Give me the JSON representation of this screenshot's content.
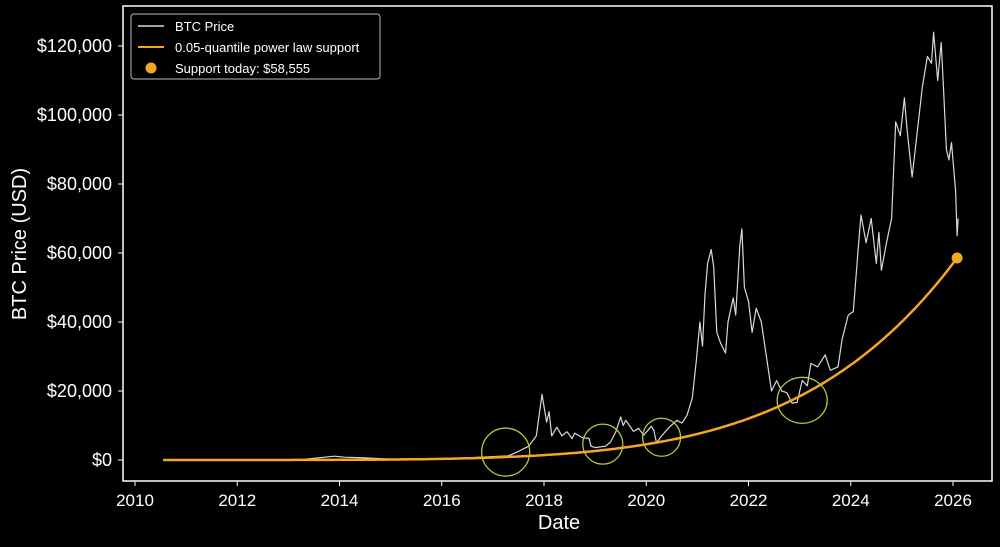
{
  "chart_data": {
    "type": "line",
    "title": "",
    "xlabel": "Date",
    "ylabel": "BTC Price (USD)",
    "xlim": [
      2009.8,
      2026.75
    ],
    "ylim": [
      -6500,
      132000
    ],
    "x_ticks": [
      2010,
      2012,
      2014,
      2016,
      2018,
      2020,
      2022,
      2024,
      2026
    ],
    "x_tick_labels": [
      "2010",
      "2012",
      "2014",
      "2016",
      "2018",
      "2020",
      "2022",
      "2024",
      "2026"
    ],
    "y_ticks": [
      0,
      20000,
      40000,
      60000,
      80000,
      100000,
      120000
    ],
    "y_tick_labels": [
      "$0",
      "$20,000",
      "$40,000",
      "$60,000",
      "$80,000",
      "$100,000",
      "$120,000"
    ],
    "grid": false,
    "legend_placement": "top-left",
    "background": "#000000",
    "series": [
      {
        "name": "BTC Price",
        "color": "#d9d9d9",
        "points": [
          [
            2010.55,
            0.07
          ],
          [
            2011.5,
            15
          ],
          [
            2013.0,
            13
          ],
          [
            2013.3,
            200
          ],
          [
            2013.9,
            1100
          ],
          [
            2014.1,
            800
          ],
          [
            2014.5,
            600
          ],
          [
            2015.0,
            250
          ],
          [
            2015.9,
            400
          ],
          [
            2016.5,
            650
          ],
          [
            2017.0,
            1000
          ],
          [
            2017.3,
            1200
          ],
          [
            2017.5,
            2500
          ],
          [
            2017.7,
            4000
          ],
          [
            2017.85,
            7000
          ],
          [
            2017.96,
            19000
          ],
          [
            2018.05,
            11000
          ],
          [
            2018.1,
            14000
          ],
          [
            2018.15,
            7000
          ],
          [
            2018.25,
            9500
          ],
          [
            2018.35,
            7000
          ],
          [
            2018.45,
            8200
          ],
          [
            2018.55,
            6200
          ],
          [
            2018.6,
            7800
          ],
          [
            2018.75,
            6500
          ],
          [
            2018.88,
            6300
          ],
          [
            2018.92,
            4000
          ],
          [
            2019.0,
            3600
          ],
          [
            2019.2,
            4000
          ],
          [
            2019.3,
            5200
          ],
          [
            2019.4,
            8000
          ],
          [
            2019.5,
            12500
          ],
          [
            2019.55,
            10000
          ],
          [
            2019.6,
            11500
          ],
          [
            2019.75,
            8300
          ],
          [
            2019.85,
            9200
          ],
          [
            2019.95,
            7200
          ],
          [
            2020.1,
            9800
          ],
          [
            2020.15,
            8500
          ],
          [
            2020.2,
            5000
          ],
          [
            2020.3,
            7000
          ],
          [
            2020.45,
            9500
          ],
          [
            2020.6,
            11500
          ],
          [
            2020.7,
            10700
          ],
          [
            2020.8,
            13000
          ],
          [
            2020.9,
            18000
          ],
          [
            2020.98,
            29000
          ],
          [
            2021.05,
            40000
          ],
          [
            2021.1,
            33000
          ],
          [
            2021.15,
            48000
          ],
          [
            2021.2,
            57000
          ],
          [
            2021.27,
            61000
          ],
          [
            2021.32,
            56000
          ],
          [
            2021.38,
            37000
          ],
          [
            2021.45,
            34000
          ],
          [
            2021.55,
            31000
          ],
          [
            2021.6,
            40000
          ],
          [
            2021.7,
            47000
          ],
          [
            2021.75,
            42000
          ],
          [
            2021.83,
            62000
          ],
          [
            2021.87,
            67000
          ],
          [
            2021.92,
            50000
          ],
          [
            2022.0,
            46000
          ],
          [
            2022.07,
            37000
          ],
          [
            2022.15,
            44000
          ],
          [
            2022.25,
            40000
          ],
          [
            2022.35,
            30000
          ],
          [
            2022.45,
            20000
          ],
          [
            2022.55,
            23000
          ],
          [
            2022.65,
            20000
          ],
          [
            2022.75,
            19500
          ],
          [
            2022.85,
            16500
          ],
          [
            2022.95,
            16700
          ],
          [
            2023.05,
            23000
          ],
          [
            2023.15,
            21500
          ],
          [
            2023.22,
            28000
          ],
          [
            2023.35,
            27000
          ],
          [
            2023.5,
            30500
          ],
          [
            2023.6,
            26000
          ],
          [
            2023.75,
            27000
          ],
          [
            2023.83,
            35000
          ],
          [
            2023.95,
            42000
          ],
          [
            2024.05,
            43000
          ],
          [
            2024.15,
            62000
          ],
          [
            2024.2,
            71000
          ],
          [
            2024.3,
            63000
          ],
          [
            2024.4,
            70000
          ],
          [
            2024.5,
            57000
          ],
          [
            2024.55,
            66000
          ],
          [
            2024.6,
            55000
          ],
          [
            2024.7,
            63000
          ],
          [
            2024.8,
            70000
          ],
          [
            2024.88,
            98000
          ],
          [
            2024.97,
            94000
          ],
          [
            2025.05,
            105000
          ],
          [
            2025.1,
            96000
          ],
          [
            2025.2,
            82000
          ],
          [
            2025.3,
            95000
          ],
          [
            2025.4,
            108000
          ],
          [
            2025.5,
            117000
          ],
          [
            2025.58,
            115000
          ],
          [
            2025.62,
            124000
          ],
          [
            2025.7,
            110000
          ],
          [
            2025.77,
            121000
          ],
          [
            2025.82,
            106000
          ],
          [
            2025.87,
            90000
          ],
          [
            2025.92,
            87000
          ],
          [
            2025.97,
            92000
          ],
          [
            2026.05,
            78000
          ],
          [
            2026.08,
            65000
          ],
          [
            2026.1,
            70000
          ]
        ]
      },
      {
        "name": "0.05-quantile power law support",
        "color": "#f5a623",
        "model": "power law in days since 2009-01-03, exponent 5.8",
        "start": 2010.55,
        "end": 2026.08
      }
    ],
    "markers": [
      {
        "name": "Support today: $58,555",
        "x": 2026.08,
        "y": 58555,
        "color": "#f5a623"
      }
    ],
    "annotations": [
      {
        "shape": "ellipse",
        "center": [
          2017.25,
          2300
        ],
        "color": "#b5c93a"
      },
      {
        "shape": "ellipse",
        "center": [
          2019.15,
          4600
        ],
        "color": "#b5c93a"
      },
      {
        "shape": "ellipse",
        "center": [
          2020.3,
          6600
        ],
        "color": "#b5c93a"
      },
      {
        "shape": "ellipse",
        "center": [
          2023.05,
          17300
        ],
        "color": "#b5c93a"
      }
    ],
    "legend": [
      {
        "label": "BTC Price",
        "kind": "line",
        "color": "#d9d9d9"
      },
      {
        "label": "0.05-quantile power law support",
        "kind": "line",
        "color": "#f5a623"
      },
      {
        "label": "Support today: $58,555",
        "kind": "dot",
        "color": "#f5a623"
      }
    ]
  }
}
